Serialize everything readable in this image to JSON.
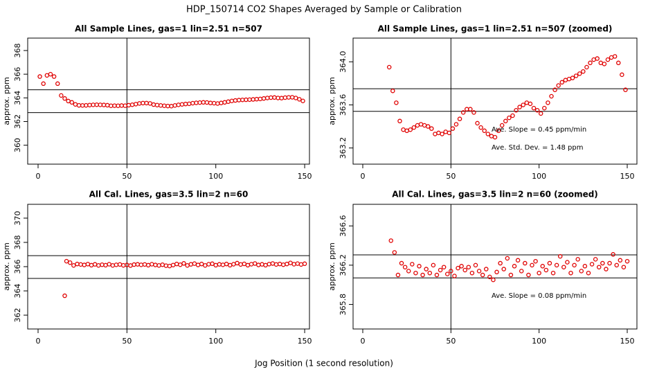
{
  "title": "HDP_150714  CO2 Shapes Averaged by Sample or Calibration",
  "xlabel": "Jog Position (1 second resolution)",
  "chart_data": [
    {
      "type": "scatter",
      "title": "All Sample Lines, gas=1 lin=2.51 n=507",
      "ylabel": "approx. ppm",
      "color": "#e00000",
      "x": [
        1,
        3,
        5,
        7,
        9,
        11,
        13,
        15,
        17,
        19,
        21,
        23,
        25,
        27,
        29,
        31,
        33,
        35,
        37,
        39,
        41,
        43,
        45,
        47,
        49,
        51,
        53,
        55,
        57,
        59,
        61,
        63,
        65,
        67,
        69,
        71,
        73,
        75,
        77,
        79,
        81,
        83,
        85,
        87,
        89,
        91,
        93,
        95,
        97,
        99,
        101,
        103,
        105,
        107,
        109,
        111,
        113,
        115,
        117,
        119,
        121,
        123,
        125,
        127,
        129,
        131,
        133,
        135,
        137,
        139,
        141,
        143,
        145,
        147,
        149
      ],
      "values": [
        365.8,
        365.2,
        365.9,
        366.0,
        365.8,
        365.2,
        364.2,
        363.95,
        363.73,
        363.62,
        363.45,
        363.37,
        363.36,
        363.37,
        363.39,
        363.41,
        363.42,
        363.41,
        363.4,
        363.38,
        363.33,
        363.34,
        363.33,
        363.35,
        363.34,
        363.38,
        363.42,
        363.47,
        363.53,
        363.56,
        363.56,
        363.53,
        363.43,
        363.39,
        363.36,
        363.33,
        363.31,
        363.3,
        363.36,
        363.41,
        363.45,
        363.48,
        363.5,
        363.55,
        363.58,
        363.6,
        363.62,
        363.61,
        363.57,
        363.55,
        363.52,
        363.57,
        363.62,
        363.68,
        363.74,
        363.78,
        363.81,
        363.83,
        363.84,
        363.85,
        363.87,
        363.89,
        363.91,
        363.95,
        363.99,
        364.02,
        364.03,
        363.99,
        363.98,
        364.02,
        364.04,
        364.05,
        363.99,
        363.88,
        363.74
      ],
      "xlim": [
        -5.84,
        152.7
      ],
      "ylim": [
        358.4,
        369.05
      ],
      "xticks": [
        0,
        50,
        100,
        150
      ],
      "yticks": [
        360,
        362,
        364,
        366,
        368
      ],
      "hlines": [
        364.68,
        362.75
      ],
      "vline": 50
    },
    {
      "type": "scatter",
      "title": "All Sample Lines, gas=1 lin=2.51 n=507 (zoomed)",
      "ylabel": "approx. ppm",
      "color": "#e00000",
      "x": [
        15,
        17,
        19,
        21,
        23,
        25,
        27,
        29,
        31,
        33,
        35,
        37,
        39,
        41,
        43,
        45,
        47,
        49,
        51,
        53,
        55,
        57,
        59,
        61,
        63,
        65,
        67,
        69,
        71,
        73,
        75,
        77,
        79,
        81,
        83,
        85,
        87,
        89,
        91,
        93,
        95,
        97,
        99,
        101,
        103,
        105,
        107,
        109,
        111,
        113,
        115,
        117,
        119,
        121,
        123,
        125,
        127,
        129,
        131,
        133,
        135,
        137,
        139,
        141,
        143,
        145,
        147,
        149
      ],
      "values": [
        363.95,
        363.73,
        363.62,
        363.45,
        363.37,
        363.36,
        363.37,
        363.39,
        363.41,
        363.42,
        363.41,
        363.4,
        363.38,
        363.33,
        363.34,
        363.33,
        363.35,
        363.34,
        363.38,
        363.42,
        363.47,
        363.53,
        363.56,
        363.56,
        363.53,
        363.43,
        363.39,
        363.36,
        363.33,
        363.31,
        363.3,
        363.36,
        363.41,
        363.45,
        363.48,
        363.5,
        363.55,
        363.58,
        363.6,
        363.62,
        363.61,
        363.57,
        363.55,
        363.52,
        363.57,
        363.62,
        363.68,
        363.74,
        363.78,
        363.81,
        363.83,
        363.84,
        363.85,
        363.87,
        363.89,
        363.91,
        363.95,
        363.99,
        364.02,
        364.03,
        363.99,
        363.98,
        364.02,
        364.04,
        364.05,
        363.99,
        363.88,
        363.74
      ],
      "xlim": [
        -5.5,
        155.5
      ],
      "ylim": [
        363.05,
        364.22
      ],
      "xticks": [
        0,
        50,
        100,
        150
      ],
      "yticks": [
        363.2,
        363.6,
        {
          "value": 364,
          "label": "364.0"
        }
      ],
      "hlines": [
        363.75,
        363.54
      ],
      "vline": 50,
      "annotations": [
        "Ave. Slope =  0.45  ppm/min",
        "Ave. Std. Dev. =  1.48  ppm"
      ]
    },
    {
      "type": "scatter",
      "title": "All Cal. Lines, gas=3.5 lin=2 n=60",
      "ylabel": "approx. ppm",
      "color": "#e00000",
      "x": [
        15,
        16,
        18,
        20,
        22,
        24,
        26,
        28,
        30,
        32,
        34,
        36,
        38,
        40,
        42,
        44,
        46,
        48,
        50,
        52,
        54,
        56,
        58,
        60,
        62,
        64,
        66,
        68,
        70,
        72,
        74,
        76,
        78,
        80,
        82,
        84,
        86,
        88,
        90,
        92,
        94,
        96,
        98,
        100,
        102,
        104,
        106,
        108,
        110,
        112,
        114,
        116,
        118,
        120,
        122,
        124,
        126,
        128,
        130,
        132,
        134,
        136,
        138,
        140,
        142,
        144,
        146,
        148,
        150
      ],
      "values": [
        363.6,
        366.45,
        366.33,
        366.1,
        366.22,
        366.18,
        366.14,
        366.21,
        366.12,
        366.19,
        366.1,
        366.16,
        366.12,
        366.2,
        366.1,
        366.15,
        366.18,
        366.11,
        366.14,
        366.09,
        366.17,
        366.19,
        366.15,
        366.18,
        366.12,
        366.2,
        366.14,
        366.1,
        366.16,
        366.08,
        366.05,
        366.13,
        366.22,
        366.16,
        366.27,
        366.1,
        366.19,
        366.25,
        366.14,
        366.22,
        366.1,
        366.2,
        366.24,
        366.12,
        366.19,
        366.15,
        366.22,
        366.12,
        366.2,
        366.29,
        366.18,
        366.23,
        366.12,
        366.2,
        366.26,
        366.14,
        366.19,
        366.12,
        366.21,
        366.26,
        366.18,
        366.22,
        366.16,
        366.22,
        366.31,
        366.2,
        366.25,
        366.18,
        366.24
      ],
      "xlim": [
        -5.84,
        152.7
      ],
      "ylim": [
        360.86,
        371.14
      ],
      "xticks": [
        0,
        50,
        100,
        150
      ],
      "yticks": [
        362,
        364,
        366,
        368,
        370
      ],
      "hlines": [
        366.91,
        365.03
      ],
      "vline": 50
    },
    {
      "type": "scatter",
      "title": "All Cal. Lines, gas=3.5 lin=2 n=60 (zoomed)",
      "ylabel": "approx. ppm",
      "color": "#e00000",
      "x": [
        16,
        18,
        20,
        22,
        24,
        26,
        28,
        30,
        32,
        34,
        36,
        38,
        40,
        42,
        44,
        46,
        48,
        50,
        52,
        54,
        56,
        58,
        60,
        62,
        64,
        66,
        68,
        70,
        72,
        74,
        76,
        78,
        80,
        82,
        84,
        86,
        88,
        90,
        92,
        94,
        96,
        98,
        100,
        102,
        104,
        106,
        108,
        110,
        112,
        114,
        116,
        118,
        120,
        122,
        124,
        126,
        128,
        130,
        132,
        134,
        136,
        138,
        140,
        142,
        144,
        146,
        148,
        150
      ],
      "values": [
        366.45,
        366.33,
        366.1,
        366.22,
        366.18,
        366.14,
        366.21,
        366.12,
        366.19,
        366.1,
        366.16,
        366.12,
        366.2,
        366.1,
        366.15,
        366.18,
        366.11,
        366.14,
        366.09,
        366.17,
        366.19,
        366.15,
        366.18,
        366.12,
        366.2,
        366.14,
        366.1,
        366.16,
        366.08,
        366.05,
        366.13,
        366.22,
        366.16,
        366.27,
        366.1,
        366.19,
        366.25,
        366.14,
        366.22,
        366.1,
        366.2,
        366.24,
        366.12,
        366.19,
        366.15,
        366.22,
        366.12,
        366.2,
        366.29,
        366.18,
        366.23,
        366.12,
        366.2,
        366.26,
        366.14,
        366.19,
        366.12,
        366.21,
        366.26,
        366.18,
        366.22,
        366.16,
        366.22,
        366.31,
        366.2,
        366.25,
        366.18,
        366.24
      ],
      "xlim": [
        -5.5,
        155.5
      ],
      "ylim": [
        365.55,
        366.82
      ],
      "xticks": [
        0,
        50,
        100,
        150
      ],
      "yticks": [
        365.8,
        366.2,
        366.6
      ],
      "hlines": [
        366.305,
        366.07
      ],
      "vline": 50,
      "annotations": [
        "Ave. Slope =  0.08  ppm/min"
      ]
    }
  ]
}
